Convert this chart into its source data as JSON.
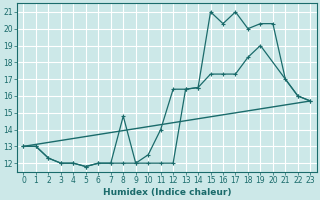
{
  "bg_color": "#cce8e8",
  "grid_color": "#ffffff",
  "line_color": "#1a6b6b",
  "xlabel": "Humidex (Indice chaleur)",
  "xlim": [
    -0.5,
    23.5
  ],
  "ylim": [
    11.5,
    21.5
  ],
  "xticks": [
    0,
    1,
    2,
    3,
    4,
    5,
    6,
    7,
    8,
    9,
    10,
    11,
    12,
    13,
    14,
    15,
    16,
    17,
    18,
    19,
    20,
    21,
    22,
    23
  ],
  "yticks": [
    12,
    13,
    14,
    15,
    16,
    17,
    18,
    19,
    20,
    21
  ],
  "line1": {
    "x": [
      0,
      1,
      2,
      3,
      4,
      5,
      6,
      7,
      8,
      9,
      10,
      11,
      12,
      13,
      14,
      15,
      16,
      17,
      18,
      19,
      20,
      21,
      22,
      23
    ],
    "y": [
      13,
      13,
      12.3,
      12,
      12,
      11.8,
      12,
      12,
      14.8,
      12,
      12,
      12,
      12,
      16.4,
      16.5,
      21.0,
      20.3,
      21.0,
      20.0,
      20.3,
      20.3,
      17.0,
      16.0,
      15.7
    ]
  },
  "line2": {
    "x": [
      0,
      1,
      2,
      3,
      4,
      5,
      6,
      7,
      8,
      9,
      10,
      11,
      12,
      13,
      14,
      15,
      16,
      17,
      18,
      19,
      22,
      23
    ],
    "y": [
      13,
      13,
      12.3,
      12,
      12,
      11.8,
      12,
      12,
      12,
      12,
      12.5,
      14.0,
      16.4,
      16.4,
      16.5,
      17.3,
      17.3,
      17.3,
      18.3,
      19.0,
      16.0,
      15.7
    ]
  },
  "line3": {
    "x": [
      0,
      23
    ],
    "y": [
      13.0,
      15.7
    ]
  }
}
